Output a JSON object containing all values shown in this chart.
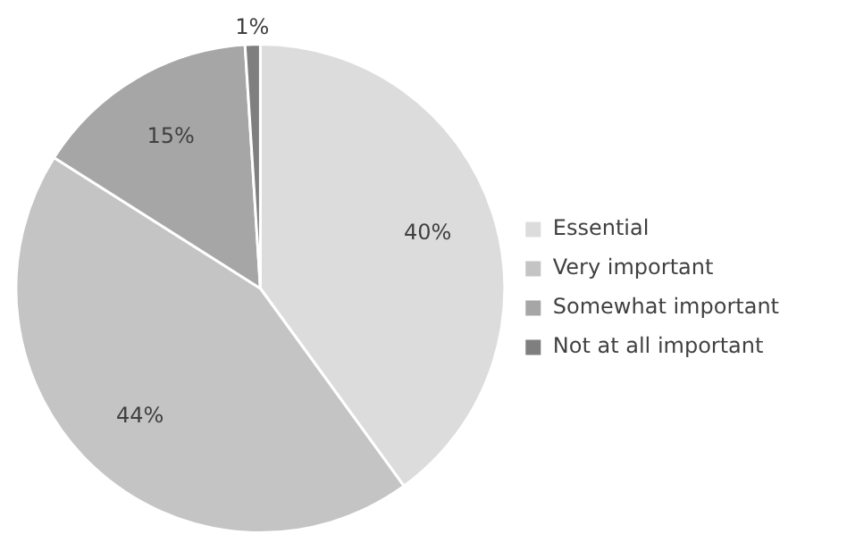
{
  "chart_data": {
    "type": "pie",
    "categories": [
      "Essential",
      "Very important",
      "Somewhat important",
      "Not at all important"
    ],
    "values": [
      40,
      44,
      15,
      1
    ],
    "colors": [
      "#dcdcdc",
      "#c4c4c4",
      "#a6a6a6",
      "#7f7f7f"
    ],
    "value_labels": [
      "40%",
      "44%",
      "15%",
      "1%"
    ],
    "legend": "right"
  }
}
